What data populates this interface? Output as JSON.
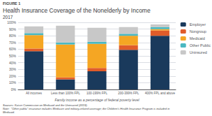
{
  "chart_data": {
    "type": "bar",
    "stacked": true,
    "figure_label": "FIGURE 1",
    "title": "Health Insurance Coverage of the Nonelderly by Income",
    "subtitle": "2017",
    "xlabel": "Family income as a percentage of federal poverty level",
    "categories": [
      "All incomes",
      "Less than 100% FPL",
      "100-199% FPL",
      "200-399% FPL",
      "400% FPL and above"
    ],
    "series": [
      {
        "name": "Employer",
        "color": "#1a3a5c",
        "values": [
          57,
          15,
          27,
          59,
          80
        ]
      },
      {
        "name": "Nongroup",
        "color": "#e05c2a",
        "values": [
          4,
          3,
          5,
          7,
          8
        ]
      },
      {
        "name": "Medicaid",
        "color": "#f5a623",
        "values": [
          20,
          49,
          36,
          14,
          2
        ]
      },
      {
        "name": "Other Public",
        "color": "#4ab8c1",
        "values": [
          3,
          3,
          3,
          3,
          3
        ]
      },
      {
        "name": "Uninsured",
        "color": "#c8c8c8",
        "values": [
          10,
          25,
          21,
          10,
          4
        ]
      }
    ],
    "ylim": [
      0,
      100
    ],
    "yticks": [
      {
        "value": 0,
        "label": "0%"
      },
      {
        "value": 10,
        "label": "10%"
      },
      {
        "value": 20,
        "label": "20%"
      },
      {
        "value": 30,
        "label": "30%"
      },
      {
        "value": 40,
        "label": "40%"
      },
      {
        "value": 50,
        "label": "50%"
      },
      {
        "value": 60,
        "label": "60%"
      },
      {
        "value": 70,
        "label": "70%"
      },
      {
        "value": 80,
        "label": "80%"
      },
      {
        "value": 90,
        "label": "90%"
      },
      {
        "value": 100,
        "label": "100%"
      }
    ],
    "grid": true,
    "legend": "right",
    "notes": [
      "Sources: Kaiser Commission on Medicaid and the Uninsured (2019).",
      "Note:  \"Other public\" insurance includes Medicare and military-related coverage; the Children's Health Insurance Program is included in",
      "Medicaid."
    ]
  }
}
